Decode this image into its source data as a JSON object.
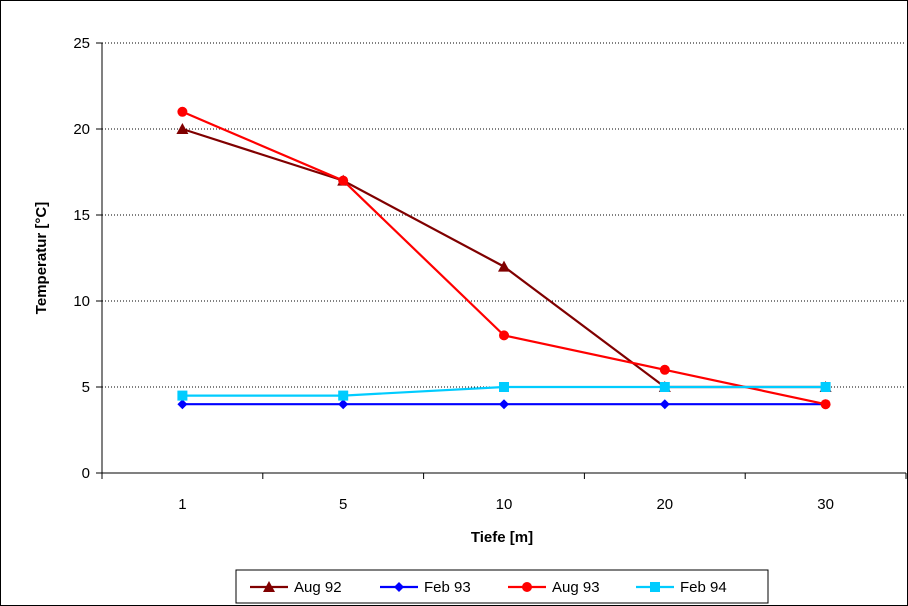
{
  "chart_data": {
    "type": "line",
    "categories": [
      "1",
      "5",
      "10",
      "20",
      "30"
    ],
    "xlabel": "Tiefe [m]",
    "ylabel": "Temperatur [°C]",
    "ylim": [
      0,
      25
    ],
    "yticks": [
      0,
      5,
      10,
      15,
      20,
      25
    ],
    "grid": "horizontal dotted",
    "legend_position": "bottom",
    "series": [
      {
        "name": "Aug 92",
        "values": [
          20,
          17,
          12,
          5,
          5
        ],
        "color": "#800000",
        "marker": "triangle"
      },
      {
        "name": "Feb 93",
        "values": [
          4,
          4,
          4,
          4,
          4
        ],
        "color": "#0000ff",
        "marker": "diamond"
      },
      {
        "name": "Aug 93",
        "values": [
          21,
          17,
          8,
          6,
          4
        ],
        "color": "#ff0000",
        "marker": "circle"
      },
      {
        "name": "Feb 94",
        "values": [
          4.5,
          4.5,
          5,
          5,
          5
        ],
        "color": "#00ccff",
        "marker": "square"
      }
    ]
  }
}
